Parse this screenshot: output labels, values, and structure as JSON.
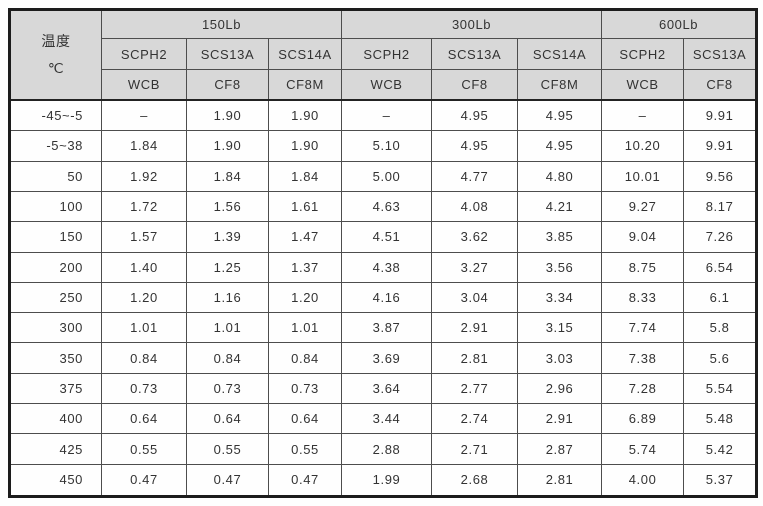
{
  "table": {
    "temp_header": {
      "line1": "温度",
      "line2": "℃"
    },
    "groups": [
      {
        "label": "150Lb",
        "cast_materials": [
          "SCPH2",
          "SCS13A",
          "SCS14A"
        ],
        "equiv_materials": [
          "WCB",
          "CF8",
          "CF8M"
        ]
      },
      {
        "label": "300Lb",
        "cast_materials": [
          "SCPH2",
          "SCS13A",
          "SCS14A"
        ],
        "equiv_materials": [
          "WCB",
          "CF8",
          "CF8M"
        ]
      },
      {
        "label": "600Lb",
        "cast_materials": [
          "SCPH2",
          "SCS13A"
        ],
        "equiv_materials": [
          "WCB",
          "CF8"
        ]
      }
    ],
    "rows": [
      {
        "temp": "-45~-5",
        "values": [
          "–",
          "1.90",
          "1.90",
          "–",
          "4.95",
          "4.95",
          "–",
          "9.91"
        ]
      },
      {
        "temp": "-5~38",
        "values": [
          "1.84",
          "1.90",
          "1.90",
          "5.10",
          "4.95",
          "4.95",
          "10.20",
          "9.91"
        ]
      },
      {
        "temp": "50",
        "values": [
          "1.92",
          "1.84",
          "1.84",
          "5.00",
          "4.77",
          "4.80",
          "10.01",
          "9.56"
        ]
      },
      {
        "temp": "100",
        "values": [
          "1.72",
          "1.56",
          "1.61",
          "4.63",
          "4.08",
          "4.21",
          "9.27",
          "8.17"
        ]
      },
      {
        "temp": "150",
        "values": [
          "1.57",
          "1.39",
          "1.47",
          "4.51",
          "3.62",
          "3.85",
          "9.04",
          "7.26"
        ]
      },
      {
        "temp": "200",
        "values": [
          "1.40",
          "1.25",
          "1.37",
          "4.38",
          "3.27",
          "3.56",
          "8.75",
          "6.54"
        ]
      },
      {
        "temp": "250",
        "values": [
          "1.20",
          "1.16",
          "1.20",
          "4.16",
          "3.04",
          "3.34",
          "8.33",
          "6.1"
        ]
      },
      {
        "temp": "300",
        "values": [
          "1.01",
          "1.01",
          "1.01",
          "3.87",
          "2.91",
          "3.15",
          "7.74",
          "5.8"
        ]
      },
      {
        "temp": "350",
        "values": [
          "0.84",
          "0.84",
          "0.84",
          "3.69",
          "2.81",
          "3.03",
          "7.38",
          "5.6"
        ]
      },
      {
        "temp": "375",
        "values": [
          "0.73",
          "0.73",
          "0.73",
          "3.64",
          "2.77",
          "2.96",
          "7.28",
          "5.54"
        ]
      },
      {
        "temp": "400",
        "values": [
          "0.64",
          "0.64",
          "0.64",
          "3.44",
          "2.74",
          "2.91",
          "6.89",
          "5.48"
        ]
      },
      {
        "temp": "425",
        "values": [
          "0.55",
          "0.55",
          "0.55",
          "2.88",
          "2.71",
          "2.87",
          "5.74",
          "5.42"
        ]
      },
      {
        "temp": "450",
        "values": [
          "0.47",
          "0.47",
          "0.47",
          "1.99",
          "2.68",
          "2.81",
          "4.00",
          "5.37"
        ]
      }
    ],
    "colors": {
      "header_bg": "#d8d8d8",
      "grid_line": "#4d4d4d",
      "outer_border": "#1c1c1c",
      "text": "#333333"
    }
  }
}
